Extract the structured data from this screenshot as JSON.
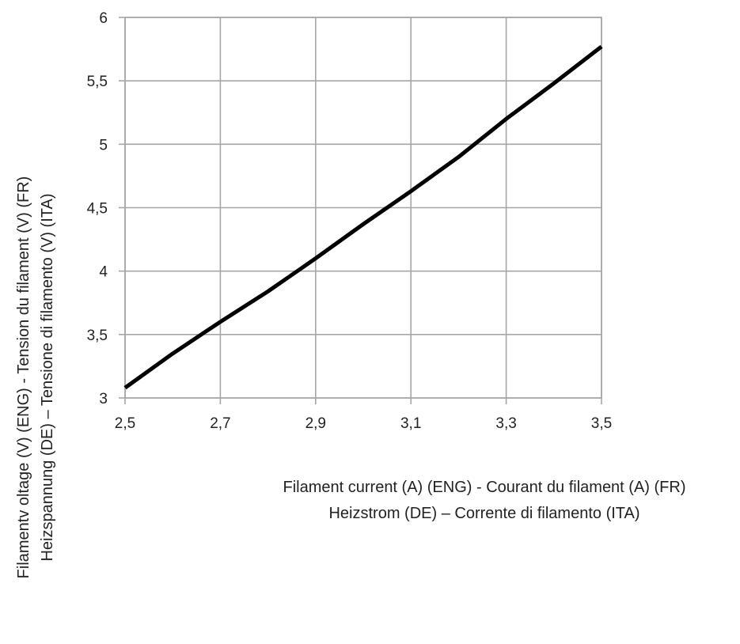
{
  "chart_data": {
    "type": "line",
    "title": "",
    "xlabel": [
      "Filament current (A) (ENG) - Courant du filament (A) (FR)",
      "Heizstrom (DE) – Corrente di filamento (ITA)"
    ],
    "ylabel": [
      "Filamentv oltage (V) (ENG) - Tension du filament (V) (FR)",
      "Heizspannung (DE) – Tensione di filamento (V) (ITA)"
    ],
    "xlim": [
      2.5,
      3.5
    ],
    "ylim": [
      3,
      6
    ],
    "xticks": [
      2.5,
      2.7,
      2.9,
      3.1,
      3.3,
      3.5
    ],
    "xtick_labels": [
      "2,5",
      "2,7",
      "2,9",
      "3,1",
      "3,3",
      "3,5"
    ],
    "yticks": [
      3,
      3.5,
      4,
      4.5,
      5,
      5.5,
      6
    ],
    "ytick_labels": [
      "3",
      "3,5",
      "4",
      "4,5",
      "5",
      "5,5",
      "6"
    ],
    "grid": true,
    "legend": "none",
    "series": [
      {
        "color": "#000000",
        "x": [
          2.5,
          2.6,
          2.7,
          2.8,
          2.9,
          3.0,
          3.1,
          3.2,
          3.3,
          3.4,
          3.5
        ],
        "y": [
          3.08,
          3.35,
          3.6,
          3.84,
          4.1,
          4.37,
          4.63,
          4.9,
          5.2,
          5.48,
          5.77
        ]
      }
    ]
  }
}
